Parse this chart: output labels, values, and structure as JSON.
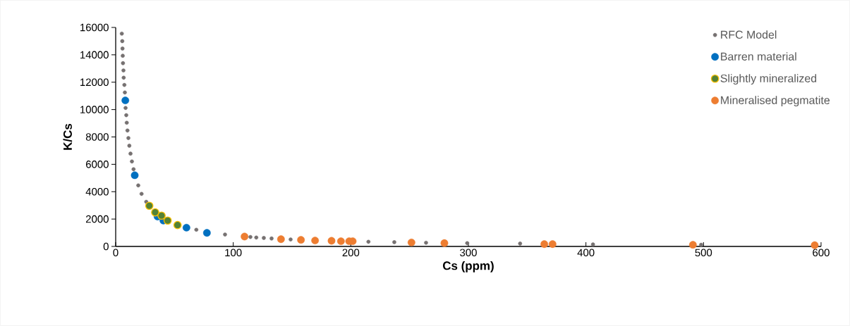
{
  "chart_data": {
    "type": "scatter",
    "xlabel": "Cs (ppm)",
    "ylabel": "K/Cs",
    "xlim": [
      0,
      600
    ],
    "ylim": [
      0,
      16000
    ],
    "xticks": [
      0,
      100,
      200,
      300,
      400,
      500,
      600
    ],
    "yticks": [
      0,
      2000,
      4000,
      6000,
      8000,
      10000,
      12000,
      14000,
      16000
    ],
    "grid": false,
    "legend": "top right",
    "series": [
      {
        "name": "RFC Model",
        "color": "#767171",
        "x": [
          5.2,
          5.6,
          5.8,
          6.0,
          6.2,
          6.6,
          6.8,
          7.4,
          7.8,
          8.4,
          9.0,
          9.4,
          10.0,
          10.8,
          11.6,
          12.6,
          13.8,
          15.2,
          19.2,
          22.0,
          26.0,
          68.6,
          93,
          114.6,
          119.6,
          126,
          132.6,
          148.8,
          215,
          237,
          264,
          299,
          344,
          406,
          498
        ],
        "values": [
          15550,
          15000,
          14460,
          13930,
          13390,
          12860,
          12330,
          11800,
          11250,
          10120,
          9590,
          9040,
          8470,
          7920,
          7360,
          6780,
          6210,
          5640,
          4460,
          3840,
          3260,
          1220,
          870,
          690,
          650,
          620,
          580,
          510,
          340,
          310,
          270,
          240,
          210,
          150,
          120
        ]
      },
      {
        "name": "Barren material",
        "color": "#0070c0",
        "x": [
          8.2,
          16.2,
          35.6,
          40.6,
          60.2,
          77.6
        ],
        "values": [
          10670,
          5200,
          2180,
          1890,
          1370,
          990
        ]
      },
      {
        "name": "Slightly mineralized",
        "color": "#548235",
        "x": [
          28.6,
          33.6,
          39,
          44.2,
          52.6
        ],
        "values": [
          2970,
          2490,
          2250,
          1890,
          1560
        ]
      },
      {
        "name": "Mineralised pegmatite",
        "color": "#ed7d31",
        "x": [
          109.6,
          140.6,
          157.6,
          169.6,
          183.6,
          191.6,
          198.6,
          201.6,
          251.6,
          279.6,
          364.6,
          371.6,
          491,
          594.6
        ],
        "values": [
          720,
          530,
          480,
          430,
          410,
          380,
          380,
          380,
          290,
          240,
          170,
          170,
          120,
          90
        ]
      }
    ]
  }
}
